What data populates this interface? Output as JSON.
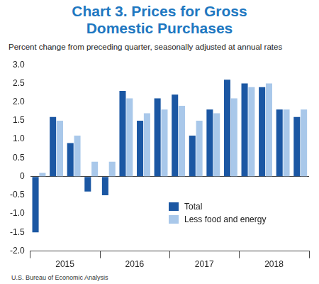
{
  "chart_data": {
    "type": "bar",
    "title": "Chart 3. Prices for Gross Domestic Purchases",
    "subtitle": "Percent change from preceding quarter, seasonally adjusted at annual rates",
    "source": "U.S. Bureau of Economic Analysis",
    "categories": [
      null,
      "2015",
      null,
      null,
      null,
      "2016",
      null,
      null,
      null,
      "2017",
      null,
      null,
      null,
      "2018",
      null,
      null
    ],
    "series": [
      {
        "name": "Total",
        "color": "#1b57a3",
        "values": [
          -1.5,
          1.6,
          0.9,
          -0.4,
          -0.5,
          2.3,
          1.5,
          2.1,
          2.2,
          1.1,
          1.8,
          2.6,
          2.5,
          2.4,
          1.8,
          1.6
        ]
      },
      {
        "name": "Less food and energy",
        "color": "#a9c8ea",
        "values": [
          0.1,
          1.5,
          1.1,
          0.4,
          0.4,
          2.1,
          1.7,
          1.8,
          1.9,
          1.5,
          1.7,
          2.1,
          2.4,
          2.5,
          1.8,
          1.8
        ]
      }
    ],
    "ylim": [
      -2,
      3
    ],
    "yticks": [
      {
        "value": -2,
        "label": "-2.0"
      },
      -1.5,
      {
        "value": -1,
        "label": "-1.0"
      },
      -0.5,
      0,
      0.5,
      {
        "value": 1,
        "label": "1.0"
      },
      1.5,
      {
        "value": 2,
        "label": "2.0"
      },
      2.5,
      {
        "value": 3,
        "label": "3.0"
      }
    ],
    "grid": false,
    "legend": "lower right"
  }
}
